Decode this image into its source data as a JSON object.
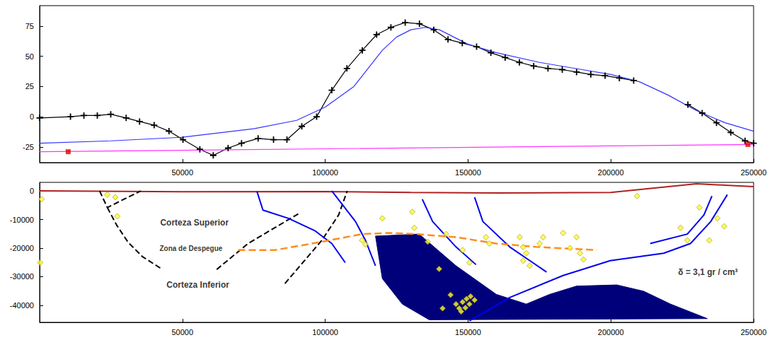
{
  "chart_data": [
    {
      "type": "line",
      "xlim": [
        0,
        250000
      ],
      "xticks": [
        50000,
        100000,
        150000,
        200000,
        250000
      ],
      "ylim": [
        -38,
        92
      ],
      "yticks": [
        -25,
        0,
        25,
        50,
        75
      ],
      "grid": false,
      "series": [
        {
          "type": "line",
          "color": "#000000",
          "marker": "plus",
          "line_style": "solid",
          "values": [
            [
              0,
              -1
            ],
            [
              10800,
              0
            ],
            [
              15500,
              1
            ],
            [
              20200,
              1
            ],
            [
              24900,
              2
            ],
            [
              30300,
              -1
            ],
            [
              35000,
              -4
            ],
            [
              40100,
              -7
            ],
            [
              45300,
              -12
            ],
            [
              50200,
              -19
            ],
            [
              56100,
              -27
            ],
            [
              60800,
              -32
            ],
            [
              66000,
              -26
            ],
            [
              70700,
              -22
            ],
            [
              76500,
              -18
            ],
            [
              81900,
              -19
            ],
            [
              86600,
              -19
            ],
            [
              91800,
              -8
            ],
            [
              97000,
              0
            ],
            [
              102300,
              22
            ],
            [
              107600,
              40
            ],
            [
              113000,
              55
            ],
            [
              118000,
              68
            ],
            [
              123000,
              74
            ],
            [
              128000,
              78
            ],
            [
              133000,
              77
            ],
            [
              138000,
              72
            ],
            [
              143000,
              64
            ],
            [
              148000,
              61
            ],
            [
              153000,
              58
            ],
            [
              158000,
              53
            ],
            [
              163000,
              49
            ],
            [
              168000,
              45
            ],
            [
              173000,
              42
            ],
            [
              178000,
              40
            ],
            [
              183000,
              39
            ],
            [
              188000,
              37
            ],
            [
              193000,
              35
            ],
            [
              198000,
              34
            ],
            [
              203000,
              32
            ],
            [
              208000,
              30
            ],
            null,
            [
              227000,
              10
            ],
            [
              232000,
              3
            ],
            [
              237000,
              -5
            ],
            [
              242000,
              -13
            ],
            [
              247000,
              -20
            ],
            [
              250000,
              -22
            ]
          ]
        },
        {
          "type": "line",
          "color": "#3333ff",
          "marker": "none",
          "line_style": "solid",
          "values": [
            [
              0,
              -22
            ],
            [
              25000,
              -20
            ],
            [
              50000,
              -17
            ],
            [
              75000,
              -10
            ],
            [
              90000,
              -3
            ],
            [
              100000,
              8
            ],
            [
              110000,
              25
            ],
            [
              115000,
              40
            ],
            [
              120000,
              55
            ],
            [
              125000,
              66
            ],
            [
              130000,
              72
            ],
            [
              135000,
              74
            ],
            [
              140000,
              72
            ],
            [
              145000,
              66
            ],
            [
              150000,
              60
            ],
            [
              160000,
              53
            ],
            [
              175000,
              45
            ],
            [
              190000,
              39
            ],
            [
              200000,
              35
            ],
            [
              210000,
              29
            ],
            [
              220000,
              18
            ],
            [
              230000,
              5
            ],
            [
              240000,
              -5
            ],
            [
              250000,
              -12
            ]
          ]
        },
        {
          "type": "line",
          "color": "#ff33ff",
          "marker": "none",
          "line_style": "solid",
          "values": [
            [
              0,
              -29
            ],
            [
              250000,
              -23
            ]
          ]
        },
        {
          "type": "scatter",
          "color": "#dd0000",
          "marker": "square",
          "values": [
            [
              10000,
              -29
            ],
            [
              248000,
              -23
            ]
          ]
        }
      ]
    },
    {
      "type": "section",
      "xlim": [
        0,
        250000
      ],
      "xticks": [
        50000,
        100000,
        150000,
        200000,
        250000
      ],
      "ylim": [
        -46000,
        3000
      ],
      "yticks": [
        0,
        -10000,
        -20000,
        -30000,
        -40000
      ],
      "grid": false,
      "series": [
        {
          "type": "polygon",
          "color": "#00007a",
          "values": [
            [
              117600,
              -15800
            ],
            [
              132900,
              -15100
            ],
            [
              145800,
              -26200
            ],
            [
              159900,
              -36200
            ],
            [
              170400,
              -39600
            ],
            [
              178600,
              -36200
            ],
            [
              188000,
              -33300
            ],
            [
              202100,
              -32900
            ],
            [
              211500,
              -35100
            ],
            [
              220900,
              -39600
            ],
            [
              233800,
              -44700
            ],
            [
              136400,
              -45100
            ],
            [
              127000,
              -39600
            ],
            [
              120000,
              -30700
            ]
          ]
        },
        {
          "type": "line",
          "color": "#b02020",
          "line_style": "solid",
          "values": [
            [
              0,
              0
            ],
            [
              50000,
              -300
            ],
            [
              100000,
              -200
            ],
            [
              130000,
              -500
            ],
            [
              160000,
              -700
            ],
            [
              200000,
              -500
            ],
            [
              230000,
              2500
            ],
            [
              240000,
              2000
            ],
            [
              250000,
              1500
            ]
          ]
        },
        {
          "type": "line",
          "color": "#000000",
          "line_style": "dashed",
          "values": [
            [
              21000,
              0
            ],
            [
              23700,
              -5800
            ],
            [
              35400,
              0
            ]
          ]
        },
        {
          "type": "line",
          "color": "#000000",
          "line_style": "dashed",
          "values": [
            [
              23700,
              -5800
            ],
            [
              27000,
              -12000
            ],
            [
              31000,
              -18000
            ],
            [
              36000,
              -23000
            ],
            [
              43000,
              -27500
            ]
          ]
        },
        {
          "type": "line",
          "color": "#000000",
          "line_style": "dashed",
          "values": [
            [
              62000,
              -27500
            ],
            [
              73000,
              -18400
            ],
            [
              90600,
              -8000
            ]
          ]
        },
        {
          "type": "line",
          "color": "#000000",
          "line_style": "dashed",
          "values": [
            [
              85900,
              -32400
            ],
            [
              98800,
              -17300
            ],
            [
              104700,
              -8400
            ],
            [
              107700,
              0
            ]
          ]
        },
        {
          "type": "line",
          "color": "#0000ee",
          "line_style": "solid",
          "values": [
            [
              76100,
              -200
            ],
            [
              78200,
              -6700
            ],
            [
              87100,
              -9600
            ],
            [
              96500,
              -14000
            ],
            [
              102300,
              -18400
            ],
            [
              107000,
              -25100
            ]
          ]
        },
        {
          "type": "line",
          "color": "#0000ee",
          "line_style": "solid",
          "values": [
            [
              102300,
              0
            ],
            [
              110600,
              -10700
            ],
            [
              114100,
              -17300
            ],
            [
              117600,
              -26200
            ]
          ]
        },
        {
          "type": "line",
          "color": "#0000ee",
          "line_style": "solid",
          "values": [
            [
              134000,
              -2900
            ],
            [
              137600,
              -10700
            ],
            [
              145800,
              -19600
            ],
            [
              152800,
              -25800
            ]
          ]
        },
        {
          "type": "line",
          "color": "#0000ee",
          "line_style": "solid",
          "values": [
            [
              152300,
              -2200
            ],
            [
              155200,
              -10700
            ],
            [
              164600,
              -19600
            ],
            [
              177500,
              -28400
            ]
          ]
        },
        {
          "type": "line",
          "color": "#0000ee",
          "line_style": "solid",
          "values": [
            [
              150500,
              -45500
            ],
            [
              164600,
              -37300
            ],
            [
              183300,
              -29600
            ],
            [
              199800,
              -24400
            ],
            [
              218500,
              -21800
            ],
            [
              227900,
              -18400
            ],
            [
              235000,
              -10700
            ],
            [
              240800,
              -1300
            ]
          ]
        },
        {
          "type": "line",
          "color": "#0000ee",
          "line_style": "solid",
          "values": [
            [
              213800,
              -18400
            ],
            [
              226800,
              -15100
            ],
            [
              232600,
              -8400
            ],
            [
              235400,
              -1800
            ]
          ]
        },
        {
          "type": "line",
          "color": "#ff8c1a",
          "line_style": "dashed",
          "values": [
            [
              69500,
              -20700
            ],
            [
              82400,
              -20700
            ],
            [
              98800,
              -17800
            ],
            [
              112900,
              -15100
            ],
            [
              122300,
              -14700
            ],
            [
              131700,
              -15100
            ],
            [
              145800,
              -16200
            ],
            [
              159900,
              -18400
            ],
            [
              173900,
              -19600
            ],
            [
              195100,
              -20700
            ]
          ]
        },
        {
          "type": "scatter",
          "color": "#ffff33",
          "marker": "diamond",
          "values": [
            [
              700,
              -2900
            ],
            [
              200,
              -25100
            ],
            [
              23700,
              -1300
            ],
            [
              26500,
              -2200
            ],
            [
              27200,
              -8900
            ],
            [
              112900,
              -17300
            ],
            [
              114100,
              -18700
            ],
            [
              120000,
              -9600
            ],
            [
              130500,
              -7300
            ],
            [
              131200,
              -12900
            ],
            [
              135900,
              -17800
            ],
            [
              142300,
              -15100
            ],
            [
              139900,
              -27300
            ],
            [
              148100,
              -20700
            ],
            [
              150500,
              -25100
            ],
            [
              156300,
              -16200
            ],
            [
              157500,
              -18400
            ],
            [
              168100,
              -16200
            ],
            [
              169300,
              -19600
            ],
            [
              170400,
              -21800
            ],
            [
              171600,
              -26200
            ],
            [
              169300,
              -24400
            ],
            [
              175100,
              -18400
            ],
            [
              176300,
              -16200
            ],
            [
              183300,
              -14700
            ],
            [
              188000,
              -16200
            ],
            [
              185700,
              -20000
            ],
            [
              189200,
              -21800
            ],
            [
              190400,
              -24000
            ],
            [
              209200,
              -1800
            ],
            [
              231000,
              -5800
            ],
            [
              237300,
              -9600
            ],
            [
              239700,
              -12400
            ],
            [
              224400,
              -12900
            ],
            [
              226800,
              -17300
            ],
            [
              234500,
              -17300
            ],
            [
              145800,
              -39600
            ],
            [
              146900,
              -41100
            ],
            [
              148100,
              -38900
            ],
            [
              149500,
              -37800
            ],
            [
              150500,
              -39600
            ],
            [
              147600,
              -42200
            ],
            [
              149100,
              -40900
            ],
            [
              150900,
              -36900
            ],
            [
              152300,
              -38200
            ],
            [
              141100,
              -41100
            ],
            [
              143900,
              -36400
            ]
          ]
        }
      ],
      "annotations": [
        {
          "text": "Corteza Superior",
          "x": 54200,
          "y": -11100
        },
        {
          "text": "Zona de Despegue",
          "x": 53000,
          "y": -20200
        },
        {
          "text": "Corteza Inferior",
          "x": 55400,
          "y": -32900
        },
        {
          "text": "δ = 3,1 gr / cm³",
          "x": 234000,
          "y": -28500
        }
      ]
    }
  ]
}
